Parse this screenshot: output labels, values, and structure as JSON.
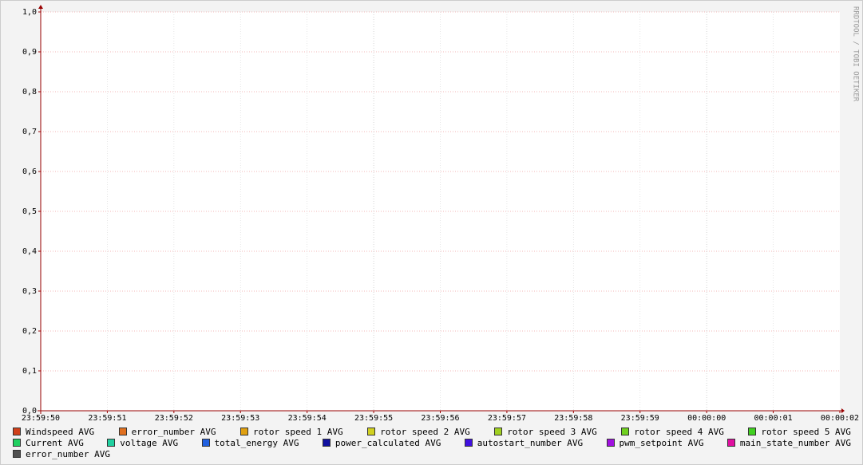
{
  "chart_data": {
    "type": "line",
    "watermark": "RRDTOOL / TOBI OETIKER",
    "categories": [
      "23:59:50",
      "23:59:51",
      "23:59:52",
      "23:59:53",
      "23:59:54",
      "23:59:55",
      "23:59:56",
      "23:59:57",
      "23:59:58",
      "23:59:59",
      "00:00:00",
      "00:00:01",
      "00:00:02"
    ],
    "ylim": [
      0,
      1
    ],
    "yticks": [
      {
        "value": 0,
        "label": "0,0"
      },
      {
        "value": 0.1,
        "label": "0,1"
      },
      {
        "value": 0.2,
        "label": "0,2"
      },
      {
        "value": 0.3,
        "label": "0,3"
      },
      {
        "value": 0.4,
        "label": "0,4"
      },
      {
        "value": 0.5,
        "label": "0,5"
      },
      {
        "value": 0.6,
        "label": "0,6"
      },
      {
        "value": 0.7,
        "label": "0,7"
      },
      {
        "value": 0.8,
        "label": "0,8"
      },
      {
        "value": 0.9,
        "label": "0,9"
      },
      {
        "value": 1,
        "label": "1,0"
      }
    ],
    "grid": true,
    "series": [
      {
        "name": "Windspeed AVG",
        "color": "#d0401a",
        "values": [
          null,
          null,
          null,
          null,
          null,
          null,
          null,
          null,
          null,
          null,
          null,
          null,
          null
        ]
      },
      {
        "name": "error_number AVG",
        "color": "#e07020",
        "values": [
          null,
          null,
          null,
          null,
          null,
          null,
          null,
          null,
          null,
          null,
          null,
          null,
          null
        ]
      },
      {
        "name": "rotor speed 1 AVG",
        "color": "#e0a010",
        "values": [
          null,
          null,
          null,
          null,
          null,
          null,
          null,
          null,
          null,
          null,
          null,
          null,
          null
        ]
      },
      {
        "name": "rotor speed 2 AVG",
        "color": "#d0d020",
        "values": [
          null,
          null,
          null,
          null,
          null,
          null,
          null,
          null,
          null,
          null,
          null,
          null,
          null
        ]
      },
      {
        "name": "rotor speed 3 AVG",
        "color": "#a0d020",
        "values": [
          null,
          null,
          null,
          null,
          null,
          null,
          null,
          null,
          null,
          null,
          null,
          null,
          null
        ]
      },
      {
        "name": "rotor speed 4 AVG",
        "color": "#70d020",
        "values": [
          null,
          null,
          null,
          null,
          null,
          null,
          null,
          null,
          null,
          null,
          null,
          null,
          null
        ]
      },
      {
        "name": "rotor speed 5 AVG",
        "color": "#40d020",
        "values": [
          null,
          null,
          null,
          null,
          null,
          null,
          null,
          null,
          null,
          null,
          null,
          null,
          null
        ]
      },
      {
        "name": "Current AVG",
        "color": "#20d060",
        "values": [
          null,
          null,
          null,
          null,
          null,
          null,
          null,
          null,
          null,
          null,
          null,
          null,
          null
        ]
      },
      {
        "name": "voltage AVG",
        "color": "#20d0a0",
        "values": [
          null,
          null,
          null,
          null,
          null,
          null,
          null,
          null,
          null,
          null,
          null,
          null,
          null
        ]
      },
      {
        "name": "total_energy AVG",
        "color": "#2060e0",
        "values": [
          null,
          null,
          null,
          null,
          null,
          null,
          null,
          null,
          null,
          null,
          null,
          null,
          null
        ]
      },
      {
        "name": "power_calculated AVG",
        "color": "#1010a0",
        "values": [
          null,
          null,
          null,
          null,
          null,
          null,
          null,
          null,
          null,
          null,
          null,
          null,
          null
        ]
      },
      {
        "name": "autostart_number AVG",
        "color": "#4010e0",
        "values": [
          null,
          null,
          null,
          null,
          null,
          null,
          null,
          null,
          null,
          null,
          null,
          null,
          null
        ]
      },
      {
        "name": "pwm_setpoint AVG",
        "color": "#a010e0",
        "values": [
          null,
          null,
          null,
          null,
          null,
          null,
          null,
          null,
          null,
          null,
          null,
          null,
          null
        ]
      },
      {
        "name": "main_state_number AVG",
        "color": "#e010a0",
        "values": [
          null,
          null,
          null,
          null,
          null,
          null,
          null,
          null,
          null,
          null,
          null,
          null,
          null
        ]
      },
      {
        "name": "error_number AVG",
        "color": "#505050",
        "values": [
          null,
          null,
          null,
          null,
          null,
          null,
          null,
          null,
          null,
          null,
          null,
          null,
          null
        ]
      }
    ]
  }
}
